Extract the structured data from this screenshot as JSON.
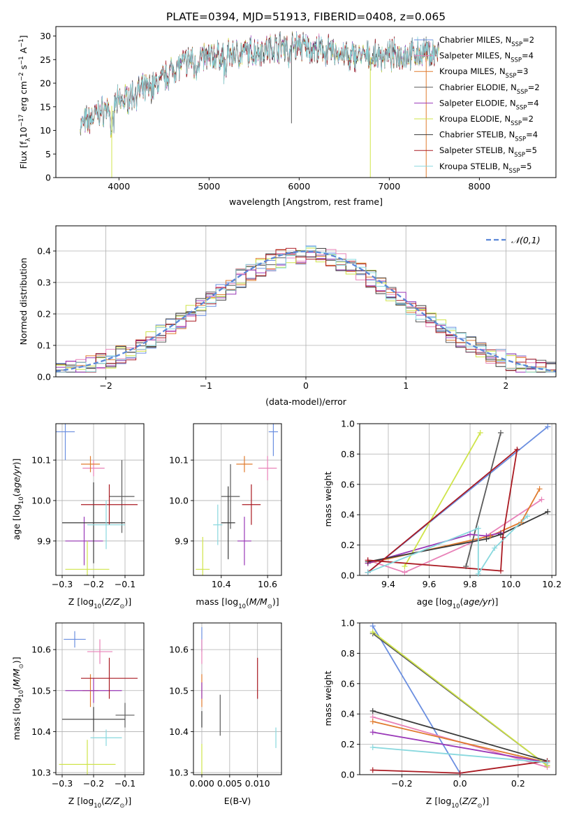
{
  "title": "PLATE=0394, MJD=51913, FIBERID=0408, z=0.065",
  "colors": [
    "#6b8fe0",
    "#e882b8",
    "#e07b2e",
    "#5b5b5b",
    "#9a38b8",
    "#cfe44a",
    "#3a3a3a",
    "#aa1a22",
    "#88d8de"
  ],
  "series_names": [
    "Chabrier MILES, N_SSP=2",
    "Salpeter MILES, N_SSP=4",
    "Kroupa MILES, N_SSP=3",
    "Chabrier ELODIE, N_SSP=2",
    "Salpeter ELODIE, N_SSP=4",
    "Kroupa ELODIE, N_SSP=2",
    "Chabrier STELIB, N_SSP=4",
    "Salpeter STELIB, N_SSP=5",
    "Kroupa STELIB, N_SSP=5"
  ],
  "chart_data": [
    {
      "id": "spectrum",
      "type": "line",
      "xlabel": "wavelength [Angstrom, rest frame]",
      "ylabel": "Flux [f_λ 10^-17 erg cm^-2 s^-1 A^-1]",
      "xlim": [
        3300,
        8850
      ],
      "ylim": [
        0,
        32
      ],
      "xticks": [
        4000,
        5000,
        6000,
        7000,
        8000
      ],
      "yticks": [
        0,
        5,
        10,
        15,
        20,
        25,
        30
      ],
      "legend": "top-right",
      "continuum_x": [
        3570,
        3800,
        4000,
        4200,
        4400,
        4600,
        4800,
        5000,
        5200,
        5400,
        5600,
        5800,
        6000,
        6200,
        6400,
        6600,
        6800,
        7000,
        7200,
        7400,
        7600
      ],
      "continuum_y": [
        11,
        14,
        16,
        18,
        19.5,
        23,
        25,
        25.5,
        26,
        26.5,
        27,
        28,
        28,
        27,
        26.5,
        26,
        25.5,
        26,
        26,
        26.5,
        26.5
      ],
      "grid": false
    },
    {
      "id": "residuals",
      "type": "histogram",
      "xlabel": "(data-model)/error",
      "ylabel": "Normed distribution",
      "xlim": [
        -2.5,
        2.5
      ],
      "ylim": [
        0,
        0.48
      ],
      "xticks": [
        -2,
        -1,
        0,
        1,
        2
      ],
      "yticks": [
        0.0,
        0.1,
        0.2,
        0.3,
        0.4
      ],
      "bin_width": 0.1,
      "legend_label": "𝒩(0,1)",
      "legend": "top-right",
      "grid": true
    },
    {
      "id": "age_vs_Z",
      "type": "errorbar",
      "xlabel": "Z [log10(Z/Z☉)]",
      "ylabel": "age [log10(age/yr)]",
      "xlim": [
        -0.32,
        -0.04
      ],
      "ylim": [
        9.815,
        10.19
      ],
      "xticks": [
        -0.3,
        -0.2,
        -0.1
      ],
      "yticks": [
        9.9,
        10.0,
        10.1
      ],
      "grid": true,
      "points": [
        {
          "x": -0.29,
          "y": 10.17,
          "xerr": 0.03,
          "yerr": 0.07
        },
        {
          "x": -0.2,
          "y": 10.08,
          "xerr": 0.035,
          "yerr": 0.02
        },
        {
          "x": -0.21,
          "y": 10.09,
          "xerr": 0.03,
          "yerr": 0.02
        },
        {
          "x": -0.11,
          "y": 10.01,
          "xerr": 0.04,
          "yerr": 0.09
        },
        {
          "x": -0.23,
          "y": 9.9,
          "xerr": 0.06,
          "yerr": 0.06
        },
        {
          "x": -0.22,
          "y": 9.83,
          "xerr": 0.07,
          "yerr": 0.07
        },
        {
          "x": -0.2,
          "y": 9.945,
          "xerr": 0.1,
          "yerr": 0.1
        },
        {
          "x": -0.15,
          "y": 9.99,
          "xerr": 0.09,
          "yerr": 0.05
        },
        {
          "x": -0.16,
          "y": 9.94,
          "xerr": 0.06,
          "yerr": 0.06
        }
      ]
    },
    {
      "id": "age_vs_mass",
      "type": "errorbar",
      "xlabel": "mass [log10(M/M☉)]",
      "ylabel": "",
      "xlim": [
        10.28,
        10.66
      ],
      "ylim": [
        9.815,
        10.19
      ],
      "xticks": [
        10.4,
        10.6
      ],
      "yticks": [
        9.9,
        10.0,
        10.1
      ],
      "grid": true,
      "points": [
        {
          "x": 10.625,
          "y": 10.17,
          "xerr": 0.02,
          "yerr": 0.06
        },
        {
          "x": 10.6,
          "y": 10.08,
          "xerr": 0.04,
          "yerr": 0.03
        },
        {
          "x": 10.5,
          "y": 10.09,
          "xerr": 0.035,
          "yerr": 0.02
        },
        {
          "x": 10.44,
          "y": 10.01,
          "xerr": 0.04,
          "yerr": 0.08
        },
        {
          "x": 10.5,
          "y": 9.9,
          "xerr": 0.03,
          "yerr": 0.06
        },
        {
          "x": 10.32,
          "y": 9.83,
          "xerr": 0.03,
          "yerr": 0.08
        },
        {
          "x": 10.43,
          "y": 9.945,
          "xerr": 0.03,
          "yerr": 0.09
        },
        {
          "x": 10.53,
          "y": 9.99,
          "xerr": 0.04,
          "yerr": 0.05
        },
        {
          "x": 10.385,
          "y": 9.94,
          "xerr": 0.02,
          "yerr": 0.05
        }
      ]
    },
    {
      "id": "mw_vs_age",
      "type": "line",
      "xlabel": "age [log10(age/yr)]",
      "ylabel": "mass weight",
      "xlim": [
        9.26,
        10.22
      ],
      "ylim": [
        0,
        1
      ],
      "xticks": [
        9.4,
        9.6,
        9.8,
        10.0,
        10.2
      ],
      "yticks": [
        0.0,
        0.2,
        0.4,
        0.6,
        0.8,
        1.0
      ],
      "grid": true,
      "series": [
        {
          "x": [
            9.3,
            10.18
          ],
          "y": [
            0.02,
            0.98
          ]
        },
        {
          "x": [
            9.3,
            9.48,
            9.88,
            10.15
          ],
          "y": [
            0.1,
            0.02,
            0.26,
            0.5
          ]
        },
        {
          "x": [
            9.3,
            9.9,
            10.05,
            10.14
          ],
          "y": [
            0.08,
            0.26,
            0.35,
            0.57
          ]
        },
        {
          "x": [
            9.78,
            9.95
          ],
          "y": [
            0.06,
            0.94
          ]
        },
        {
          "x": [
            9.3,
            9.8,
            9.88,
            9.95
          ],
          "y": [
            0.08,
            0.27,
            0.26,
            0.28
          ]
        },
        {
          "x": [
            9.48,
            9.85
          ],
          "y": [
            0.06,
            0.94
          ]
        },
        {
          "x": [
            9.3,
            9.88,
            9.95,
            10.18
          ],
          "y": [
            0.09,
            0.24,
            0.27,
            0.42
          ]
        },
        {
          "x": [
            9.3,
            9.95,
            9.96,
            10.03,
            9.3
          ],
          "y": [
            0.1,
            0.03,
            0.25,
            0.83,
            0.02
          ]
        },
        {
          "x": [
            9.3,
            9.84,
            9.84,
            9.92,
            10.08
          ],
          "y": [
            0.02,
            0.31,
            0.01,
            0.18,
            0.39
          ]
        }
      ]
    },
    {
      "id": "mass_vs_Z",
      "type": "errorbar",
      "xlabel": "Z [log10(Z/Z☉)]",
      "ylabel": "mass [log10(M/M☉)]",
      "xlim": [
        -0.32,
        -0.04
      ],
      "ylim": [
        10.295,
        10.665
      ],
      "xticks": [
        -0.3,
        -0.2,
        -0.1
      ],
      "yticks": [
        10.3,
        10.4,
        10.5,
        10.6
      ],
      "grid": true,
      "points": [
        {
          "x": -0.26,
          "y": 10.625,
          "xerr": 0.035,
          "yerr": 0.02
        },
        {
          "x": -0.18,
          "y": 10.595,
          "xerr": 0.04,
          "yerr": 0.03
        },
        {
          "x": -0.21,
          "y": 10.5,
          "xerr": 0.025,
          "yerr": 0.04
        },
        {
          "x": -0.1,
          "y": 10.44,
          "xerr": 0.03,
          "yerr": 0.03
        },
        {
          "x": -0.2,
          "y": 10.5,
          "xerr": 0.09,
          "yerr": 0.03
        },
        {
          "x": -0.22,
          "y": 10.32,
          "xerr": 0.09,
          "yerr": 0.06
        },
        {
          "x": -0.2,
          "y": 10.43,
          "xerr": 0.1,
          "yerr": 0.03
        },
        {
          "x": -0.15,
          "y": 10.53,
          "xerr": 0.09,
          "yerr": 0.05
        },
        {
          "x": -0.16,
          "y": 10.385,
          "xerr": 0.05,
          "yerr": 0.02
        }
      ]
    },
    {
      "id": "mass_vs_ebv",
      "type": "errorbar",
      "xlabel": "E(B-V)",
      "ylabel": "",
      "xlim": [
        -0.0015,
        0.0143
      ],
      "ylim": [
        10.295,
        10.665
      ],
      "xticks": [
        0.0,
        0.005,
        0.01
      ],
      "xticklabels": [
        "0.000",
        "0.005",
        "0.010"
      ],
      "yticks": [
        10.3,
        10.4,
        10.5,
        10.6
      ],
      "grid": true,
      "points": [
        {
          "x": 0.0,
          "y": 10.625,
          "xerr": 0,
          "yerr": 0.03
        },
        {
          "x": 0.0,
          "y": 10.595,
          "xerr": 0,
          "yerr": 0.03
        },
        {
          "x": 0.0,
          "y": 10.5,
          "xerr": 0,
          "yerr": 0.04
        },
        {
          "x": 0.0033,
          "y": 10.44,
          "xerr": 0,
          "yerr": 0.05
        },
        {
          "x": 0.0,
          "y": 10.5,
          "xerr": 0,
          "yerr": 0.02
        },
        {
          "x": 0.0,
          "y": 10.32,
          "xerr": 0,
          "yerr": 0.05
        },
        {
          "x": 0.0,
          "y": 10.43,
          "xerr": 0,
          "yerr": 0.02
        },
        {
          "x": 0.01,
          "y": 10.53,
          "xerr": 0,
          "yerr": 0.05
        },
        {
          "x": 0.0133,
          "y": 10.385,
          "xerr": 0,
          "yerr": 0.025
        }
      ]
    },
    {
      "id": "mw_vs_Z",
      "type": "line",
      "xlabel": "Z [log10(Z/Z☉)]",
      "ylabel": "mass weight",
      "xlim": [
        -0.345,
        0.33
      ],
      "ylim": [
        0,
        1
      ],
      "xticks": [
        -0.2,
        0.0,
        0.2
      ],
      "yticks": [
        0.0,
        0.2,
        0.4,
        0.6,
        0.8,
        1.0
      ],
      "grid": true,
      "series": [
        {
          "x": [
            -0.3,
            0.0
          ],
          "y": [
            0.98,
            0.01
          ]
        },
        {
          "x": [
            -0.3,
            0.3
          ],
          "y": [
            0.38,
            0.05
          ]
        },
        {
          "x": [
            -0.3,
            0.3
          ],
          "y": [
            0.35,
            0.08
          ]
        },
        {
          "x": [
            -0.3,
            0.3
          ],
          "y": [
            0.93,
            0.06
          ]
        },
        {
          "x": [
            -0.3,
            0.3
          ],
          "y": [
            0.28,
            0.08
          ]
        },
        {
          "x": [
            -0.3,
            0.3
          ],
          "y": [
            0.94,
            0.06
          ]
        },
        {
          "x": [
            -0.3,
            0.3
          ],
          "y": [
            0.42,
            0.09
          ]
        },
        {
          "x": [
            -0.3,
            0.0,
            0.3
          ],
          "y": [
            0.03,
            0.01,
            0.09
          ]
        },
        {
          "x": [
            -0.3,
            0.3
          ],
          "y": [
            0.18,
            0.08
          ]
        }
      ]
    }
  ]
}
